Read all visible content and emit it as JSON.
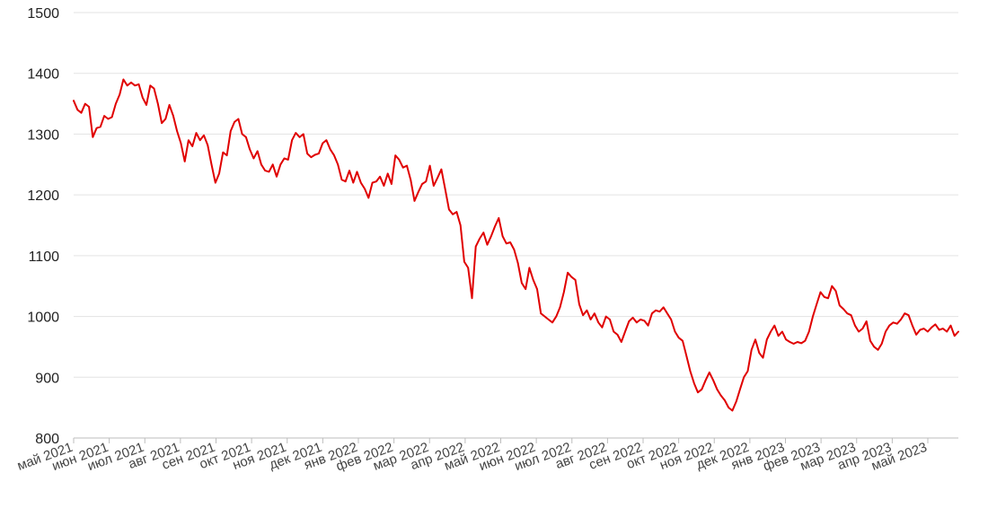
{
  "chart_data": {
    "type": "line",
    "title": "",
    "xlabel": "",
    "ylabel": "",
    "ylim": [
      800,
      1500
    ],
    "y_ticks": [
      "800",
      "900",
      "1000",
      "1100",
      "1200",
      "1300",
      "1400",
      "1500"
    ],
    "x_tick_labels": [
      "май 2021",
      "июн 2021",
      "июл 2021",
      "авг 2021",
      "сен 2021",
      "окт 2021",
      "ноя 2021",
      "дек 2021",
      "янв 2022",
      "фев 2022",
      "мар 2022",
      "апр 2022",
      "май 2022",
      "июн 2022",
      "июл 2022",
      "авг 2022",
      "сен 2022",
      "окт 2022",
      "ноя 2022",
      "дек 2022",
      "янв 2023",
      "фев 2023",
      "мар 2023",
      "апр 2023",
      "май 2023"
    ],
    "grid": true,
    "colors": {
      "line": "#e00000",
      "grid": "#e3e3e3",
      "axis": "#bdbdbd"
    },
    "series": [
      {
        "values": [
          1355,
          1340,
          1335,
          1350,
          1345,
          1295,
          1310,
          1312,
          1330,
          1325,
          1328,
          1350,
          1365,
          1390,
          1380,
          1385,
          1380,
          1382,
          1360,
          1348,
          1380,
          1375,
          1350,
          1318,
          1325,
          1348,
          1330,
          1305,
          1285,
          1255,
          1290,
          1280,
          1302,
          1290,
          1298,
          1282,
          1250,
          1220,
          1235,
          1270,
          1265,
          1305,
          1320,
          1325,
          1300,
          1295,
          1275,
          1260,
          1272,
          1250,
          1240,
          1238,
          1250,
          1230,
          1250,
          1260,
          1258,
          1290,
          1302,
          1295,
          1300,
          1268,
          1262,
          1266,
          1268,
          1285,
          1290,
          1275,
          1265,
          1250,
          1225,
          1222,
          1240,
          1220,
          1238,
          1220,
          1210,
          1195,
          1220,
          1222,
          1230,
          1215,
          1235,
          1218,
          1265,
          1258,
          1245,
          1248,
          1225,
          1190,
          1205,
          1218,
          1222,
          1248,
          1215,
          1228,
          1242,
          1210,
          1176,
          1168,
          1172,
          1150,
          1090,
          1080,
          1030,
          1115,
          1128,
          1138,
          1118,
          1132,
          1148,
          1162,
          1132,
          1120,
          1122,
          1110,
          1088,
          1055,
          1045,
          1080,
          1060,
          1045,
          1005,
          1000,
          995,
          990,
          1000,
          1015,
          1040,
          1072,
          1065,
          1060,
          1020,
          1002,
          1010,
          995,
          1005,
          990,
          982,
          1000,
          995,
          975,
          970,
          958,
          975,
          992,
          998,
          990,
          995,
          993,
          985,
          1005,
          1010,
          1008,
          1015,
          1005,
          995,
          975,
          965,
          960,
          935,
          910,
          890,
          875,
          880,
          895,
          908,
          895,
          880,
          870,
          862,
          850,
          845,
          860,
          880,
          900,
          910,
          945,
          962,
          940,
          932,
          962,
          975,
          985,
          968,
          975,
          962,
          958,
          955,
          958,
          956,
          960,
          975,
          1000,
          1020,
          1040,
          1032,
          1030,
          1050,
          1042,
          1018,
          1012,
          1005,
          1002,
          985,
          975,
          980,
          992,
          960,
          950,
          945,
          955,
          975,
          985,
          990,
          988,
          995,
          1005,
          1002,
          985,
          970,
          978,
          980,
          975,
          982,
          987,
          978,
          980,
          975,
          985,
          968,
          975
        ]
      }
    ]
  }
}
